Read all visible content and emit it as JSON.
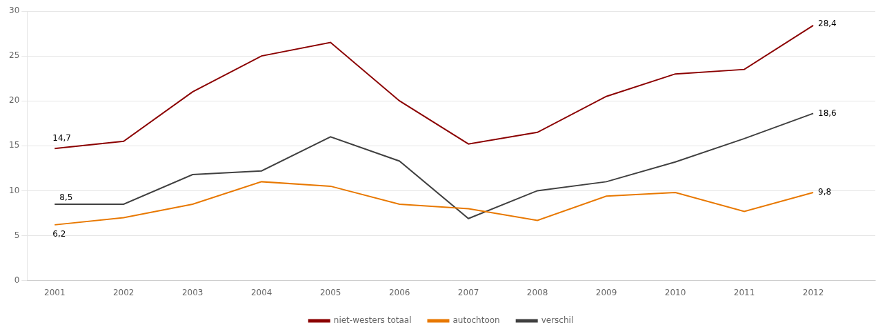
{
  "chart_data": {
    "type": "line",
    "x": [
      2001,
      2002,
      2003,
      2004,
      2005,
      2006,
      2007,
      2008,
      2009,
      2010,
      2011,
      2012
    ],
    "series": [
      {
        "name": "niet-westers totaal",
        "color": "#8B0000",
        "values": [
          14.7,
          15.5,
          21.0,
          25.0,
          26.5,
          20.0,
          15.2,
          16.5,
          20.5,
          23.0,
          23.5,
          28.4
        ]
      },
      {
        "name": "autochtoon",
        "color": "#E87800",
        "values": [
          6.2,
          7.0,
          8.5,
          11.0,
          10.5,
          8.5,
          8.0,
          6.7,
          9.4,
          9.8,
          7.7,
          9.8
        ]
      },
      {
        "name": "verschil",
        "color": "#404040",
        "values": [
          8.5,
          8.5,
          11.8,
          12.2,
          16.0,
          13.3,
          6.9,
          10.0,
          11.0,
          13.2,
          15.8,
          18.6
        ]
      }
    ],
    "xlim": [
      2000.6,
      2012.9
    ],
    "xticks": [
      2001,
      2002,
      2003,
      2004,
      2005,
      2006,
      2007,
      2008,
      2009,
      2010,
      2011,
      2012
    ],
    "ylim": [
      0,
      30
    ],
    "yticks": [
      0,
      5,
      10,
      15,
      20,
      25,
      30
    ],
    "grid": "y",
    "legend": "bottom",
    "marker": "none",
    "annotations": [
      {
        "text": "14,7",
        "x": 2001,
        "y": 14.7
      },
      {
        "text": "6,2",
        "x": 2001,
        "y": 6.2
      },
      {
        "text": "8,5",
        "x": 2001,
        "y": 8.5
      },
      {
        "text": "28,4",
        "x": 2012,
        "y": 28.4
      },
      {
        "text": "9,8",
        "x": 2012,
        "y": 9.8
      },
      {
        "text": "18,6",
        "x": 2012,
        "y": 18.6
      }
    ]
  }
}
